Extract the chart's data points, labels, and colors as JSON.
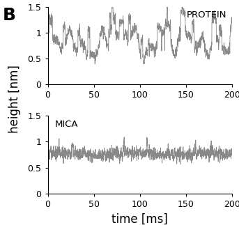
{
  "title_label": "B",
  "xlabel": "time [ms]",
  "ylabel": "height [nm]",
  "xlim": [
    0,
    200
  ],
  "ylim": [
    0,
    1.5
  ],
  "yticks": [
    0,
    0.5,
    1.0,
    1.5
  ],
  "xticks": [
    0,
    50,
    100,
    150,
    200
  ],
  "protein_label": "PROTEIN",
  "mica_label": "MICA",
  "protein_mean": 0.8,
  "mica_mean": 0.76,
  "line_color": "#888888",
  "line_width": 0.6,
  "n_points": 2000,
  "time_max": 200,
  "background_color": "#ffffff",
  "label_fontsize": 12,
  "tick_fontsize": 9,
  "panel_label_fontsize": 18
}
